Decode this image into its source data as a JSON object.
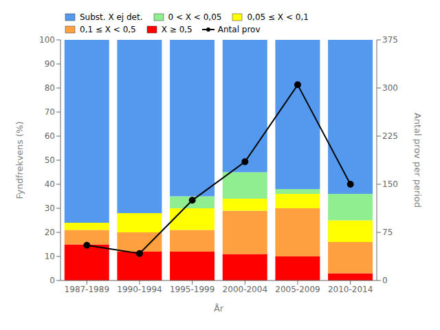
{
  "chart_data": {
    "type": "bar",
    "stacked": true,
    "categories": [
      "1987-1989",
      "1990-1994",
      "1995-1999",
      "2000-2004",
      "2005-2009",
      "2010-2014"
    ],
    "xlabel": "År",
    "ylabel": "Fyndfrekvens (%)",
    "y2label": "Antal prov per period",
    "ylim": [
      0,
      100
    ],
    "yticks": [
      0,
      10,
      20,
      30,
      40,
      50,
      60,
      70,
      80,
      90,
      100
    ],
    "y2lim": [
      0,
      375
    ],
    "y2ticks": [
      0,
      75,
      150,
      225,
      300,
      375
    ],
    "grid": false,
    "legend": "upper left",
    "series": [
      {
        "name": "X ≥ 0,5",
        "color": "#ff0000",
        "values": [
          15,
          12,
          12,
          11,
          10,
          3
        ]
      },
      {
        "name": "0,1 ≤ X < 0,5",
        "color": "#ffa040",
        "values": [
          6,
          8,
          9,
          18,
          20,
          13
        ]
      },
      {
        "name": "0,05 ≤ X < 0,1",
        "color": "#ffff00",
        "values": [
          3,
          8,
          9,
          5,
          6,
          9
        ]
      },
      {
        "name": "0 < X < 0,05",
        "color": "#90ee90",
        "values": [
          0,
          0,
          5,
          11,
          2,
          11
        ]
      },
      {
        "name": "Subst. X ej det.",
        "color": "#5599ee",
        "values": [
          76,
          72,
          65,
          55,
          62,
          64
        ]
      },
      {
        "name": "Antal prov",
        "type": "line",
        "axis": "y2",
        "color": "#000000",
        "marker": "o",
        "values": [
          55,
          42,
          125,
          185,
          305,
          150
        ]
      }
    ]
  }
}
